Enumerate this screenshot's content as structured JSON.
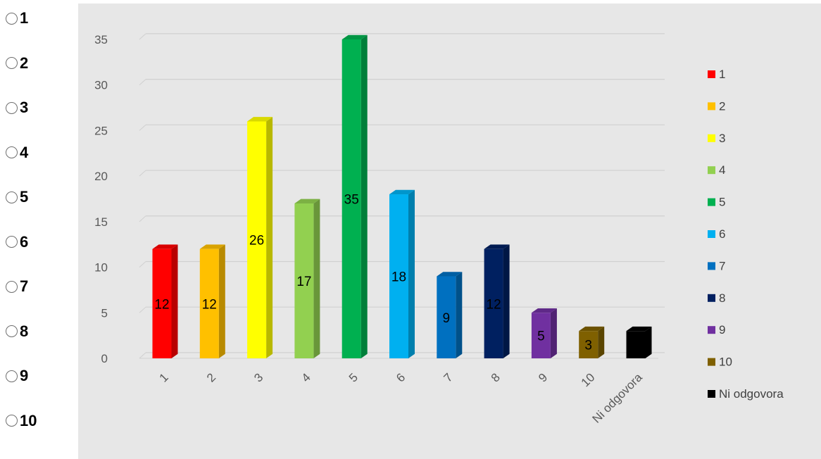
{
  "options": [
    "1",
    "2",
    "3",
    "4",
    "5",
    "6",
    "7",
    "8",
    "9",
    "10"
  ],
  "chart_data": {
    "type": "bar",
    "title": "",
    "xlabel": "",
    "ylabel": "",
    "categories": [
      "1",
      "2",
      "3",
      "4",
      "5",
      "6",
      "7",
      "8",
      "9",
      "10",
      "Ni odgovora"
    ],
    "values": [
      12,
      12,
      26,
      17,
      35,
      18,
      9,
      12,
      5,
      3,
      3
    ],
    "data_labels": [
      "12",
      "12",
      "26",
      "17",
      "35",
      "18",
      "9",
      "12",
      "5",
      "3",
      ""
    ],
    "colors": [
      "#ff0000",
      "#ffc000",
      "#ffff00",
      "#92d050",
      "#00b050",
      "#00b0f0",
      "#0070c0",
      "#002060",
      "#7030a0",
      "#7f6000",
      "#000000"
    ],
    "yticks": [
      "0",
      "5",
      "10",
      "15",
      "20",
      "25",
      "30",
      "35"
    ],
    "ylim": [
      0,
      35
    ],
    "grid": true,
    "legend": {
      "position": "right",
      "entries": [
        "1",
        "2",
        "3",
        "4",
        "5",
        "6",
        "7",
        "8",
        "9",
        "10",
        "Ni odgovora"
      ]
    }
  }
}
